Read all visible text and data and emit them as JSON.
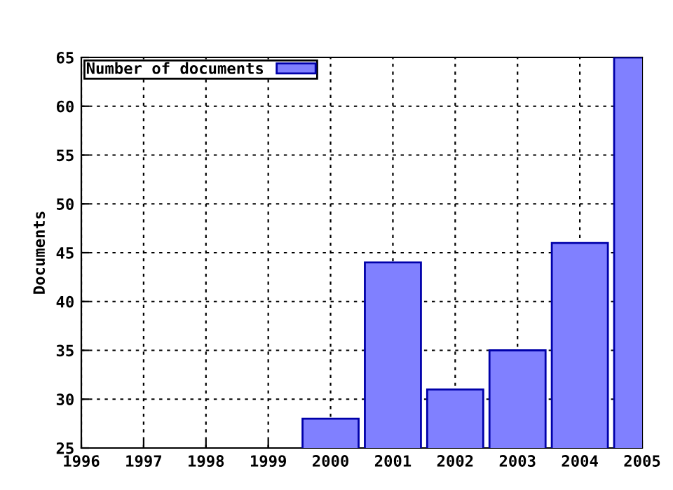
{
  "chart_data": {
    "type": "bar",
    "ylabel": "Documents",
    "x": [
      2000,
      2001,
      2002,
      2003,
      2004,
      2005
    ],
    "series": [
      {
        "name": "Number of documents",
        "color": "#8080ff",
        "values": [
          28,
          44,
          31,
          35,
          46,
          65
        ]
      }
    ],
    "xlim": [
      1996,
      2005
    ],
    "xticks": [
      1996,
      1997,
      1998,
      1999,
      2000,
      2001,
      2002,
      2003,
      2004,
      2005
    ],
    "ylim": [
      25,
      65
    ],
    "yticks": [
      25,
      30,
      35,
      40,
      45,
      50,
      55,
      60,
      65
    ],
    "grid": true,
    "legend": "top left"
  }
}
